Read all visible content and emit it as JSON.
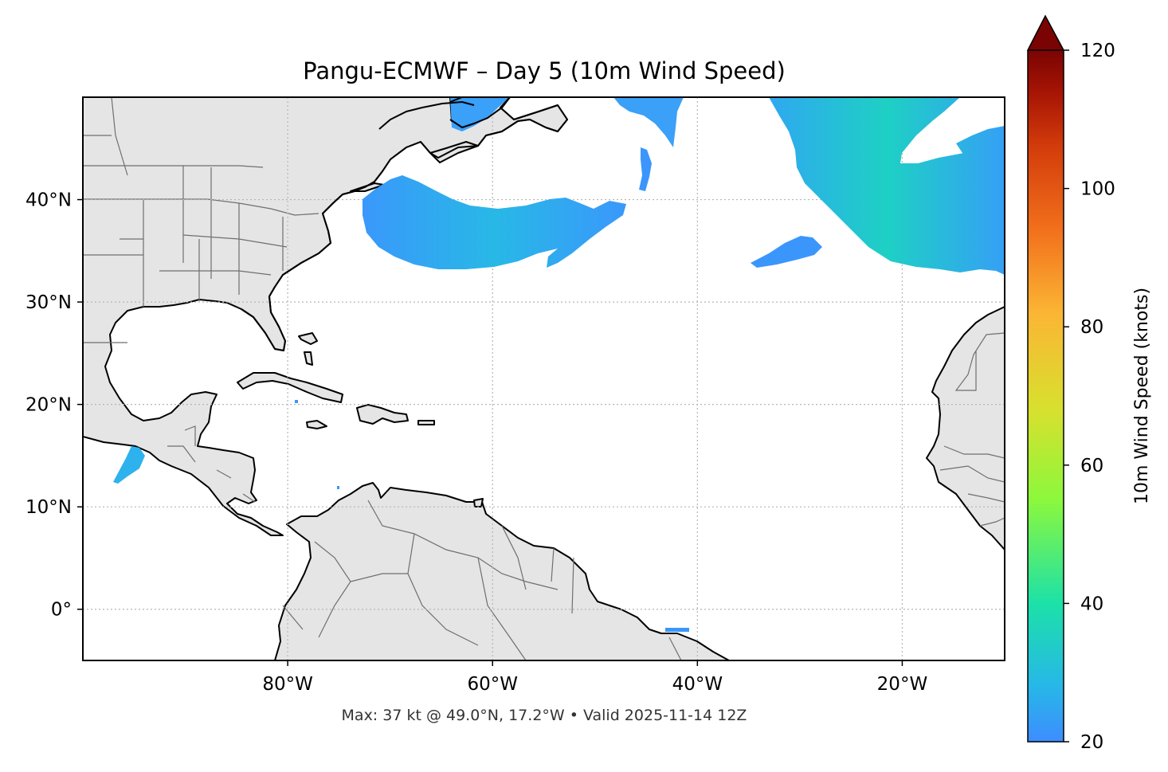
{
  "map": {
    "title": "Pangu-ECMWF – Day 5 (10m Wind Speed)",
    "footer": "Max: 37 kt @ 49.0°N, 17.2°W • Valid 2025-11-14 12Z",
    "lon_range": [
      -100,
      -10
    ],
    "lat_range": [
      -5,
      50
    ],
    "gridlines": "dotted",
    "land_color": "#e5e5e5",
    "coast_color": "#000000",
    "border_color": "#6f6f6f",
    "lon_ticks": [
      {
        "value": -80,
        "label": "80°W"
      },
      {
        "value": -60,
        "label": "60°W"
      },
      {
        "value": -40,
        "label": "40°W"
      },
      {
        "value": -20,
        "label": "20°W"
      }
    ],
    "lat_ticks": [
      {
        "value": 40,
        "label": "40°N"
      },
      {
        "value": 30,
        "label": "30°N"
      },
      {
        "value": 20,
        "label": "20°N"
      },
      {
        "value": 10,
        "label": "10°N"
      },
      {
        "value": 0,
        "label": "0°"
      }
    ],
    "wind_regions": [
      {
        "name": "wind-region-mid-atlantic-band",
        "speed_kt": 25
      },
      {
        "name": "wind-region-northeast-atlantic",
        "speed_kt": 33
      },
      {
        "name": "wind-region-newfoundland",
        "speed_kt": 24
      },
      {
        "name": "wind-region-central-north-atlantic",
        "speed_kt": 24
      },
      {
        "name": "wind-region-azores-patch",
        "speed_kt": 23
      },
      {
        "name": "wind-region-eastern-pacific",
        "speed_kt": 25
      }
    ]
  },
  "colorbar": {
    "label": "10m Wind Speed (knots)",
    "min": 20,
    "max": 120,
    "extend": "max",
    "ticks": [
      {
        "value": 20,
        "label": "20"
      },
      {
        "value": 40,
        "label": "40"
      },
      {
        "value": 60,
        "label": "60"
      },
      {
        "value": 80,
        "label": "80"
      },
      {
        "value": 100,
        "label": "100"
      },
      {
        "value": 120,
        "label": "120"
      }
    ],
    "colors": [
      "#3d8dff",
      "#27b7e8",
      "#1ce1a8",
      "#8cf83c",
      "#d8e02e",
      "#fbb534",
      "#f2701c",
      "#d33c0b",
      "#a51405",
      "#7a0403"
    ]
  }
}
